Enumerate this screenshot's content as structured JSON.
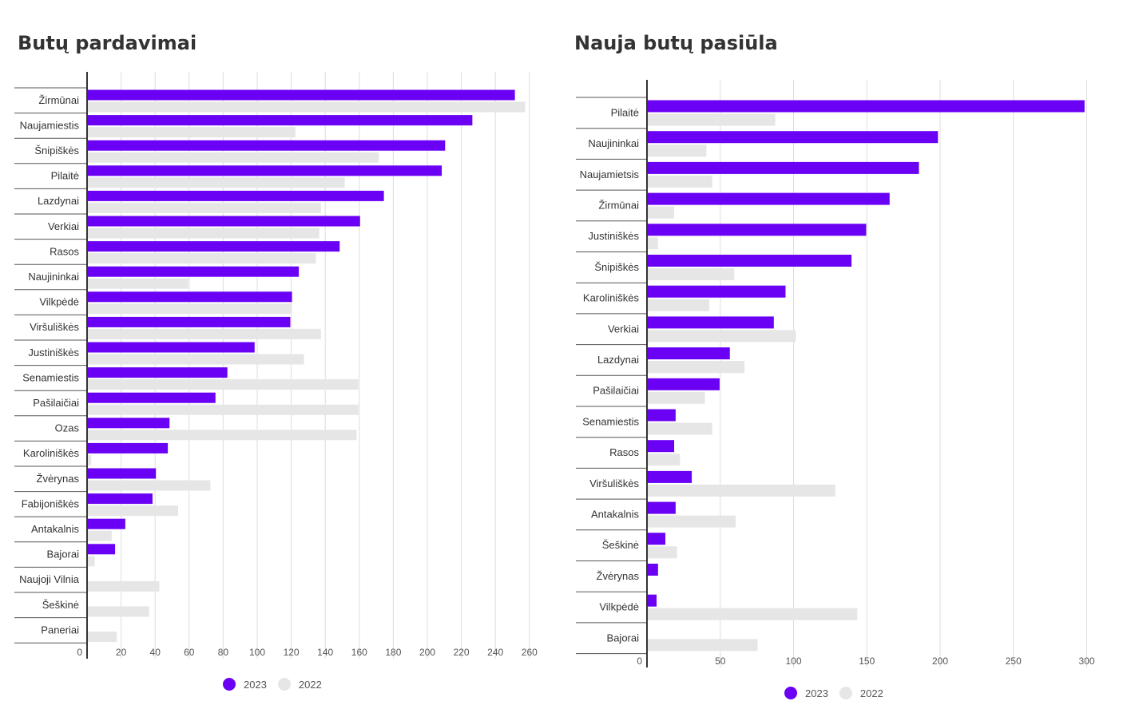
{
  "colors": {
    "y2023": "#6a00f4",
    "y2022": "#e6e6e6"
  },
  "legend": {
    "label_2023": "2023",
    "label_2022": "2022"
  },
  "charts": {
    "sales": {
      "title": "Butų pardavimai"
    },
    "supply": {
      "title": "Nauja butų pasiūla"
    }
  },
  "chart_data": [
    {
      "type": "bar",
      "orientation": "horizontal",
      "title": "Butų pardavimai",
      "categories": [
        "Žirmūnai",
        "Naujamiestis",
        "Šnipiškės",
        "Pilaitė",
        "Lazdynai",
        "Verkiai",
        "Rasos",
        "Naujininkai",
        "Vilkpėdė",
        "Viršuliškės",
        "Justiniškės",
        "Senamiestis",
        "Pašilaičiai",
        "Ozas",
        "Karoliniškės",
        "Žvėrynas",
        "Fabijoniškės",
        "Antakalnis",
        "Bajorai",
        "Naujoji Vilnia",
        "Šeškinė",
        "Paneriai"
      ],
      "series": [
        {
          "name": "2023",
          "values": [
            251,
            226,
            210,
            208,
            174,
            160,
            148,
            124,
            120,
            119,
            98,
            82,
            75,
            48,
            47,
            40,
            38,
            22,
            16,
            0,
            0,
            0
          ]
        },
        {
          "name": "2022",
          "values": [
            257,
            122,
            171,
            151,
            137,
            136,
            134,
            59,
            120,
            137,
            127,
            159,
            159,
            158,
            2,
            72,
            53,
            14,
            4,
            42,
            36,
            17
          ]
        }
      ],
      "xticks": [
        0,
        20,
        40,
        60,
        80,
        100,
        120,
        140,
        160,
        180,
        200,
        220,
        240,
        260
      ],
      "xlim": [
        0,
        260
      ],
      "grid": true,
      "legend_position": "bottom-center"
    },
    {
      "type": "bar",
      "orientation": "horizontal",
      "title": "Nauja butų pasiūla",
      "categories": [
        "Pilaitė",
        "Naujininkai",
        "Naujamietsis",
        "Žirmūnai",
        "Justiniškės",
        "Šnipiškės",
        "Karoliniškės",
        "Verkiai",
        "Lazdynai",
        "Pašilaičiai",
        "Senamiestis",
        "Rasos",
        "Viršuliškės",
        "Antakalnis",
        "Šeškinė",
        "Žvėrynas",
        "Vilkpėdė",
        "Bajorai"
      ],
      "series": [
        {
          "name": "2023",
          "values": [
            298,
            198,
            185,
            165,
            149,
            139,
            94,
            86,
            56,
            49,
            19,
            18,
            30,
            19,
            12,
            7,
            6,
            0
          ]
        },
        {
          "name": "2022",
          "values": [
            87,
            40,
            44,
            18,
            7,
            59,
            42,
            101,
            66,
            39,
            44,
            22,
            128,
            60,
            20,
            0,
            143,
            75
          ]
        }
      ],
      "xticks": [
        0,
        50,
        100,
        150,
        200,
        250,
        300
      ],
      "xlim": [
        0,
        300
      ],
      "grid": true,
      "legend_position": "bottom-center"
    }
  ]
}
